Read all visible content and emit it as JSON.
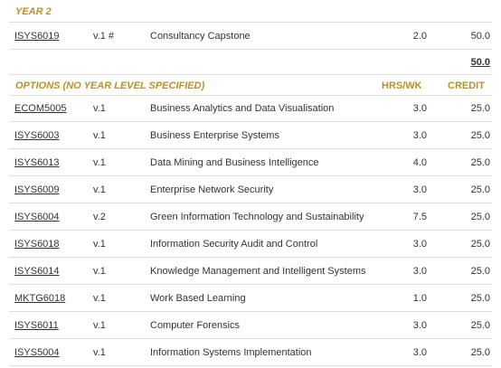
{
  "year2": {
    "title": "YEAR 2",
    "rows": [
      {
        "code": "ISYS6019",
        "version": "v.1 #",
        "title": "Consultancy Capstone",
        "hrs": "2.0",
        "credit": "50.0"
      }
    ],
    "total": "50.0"
  },
  "options": {
    "title": "OPTIONS (NO YEAR LEVEL SPECIFIED)",
    "hrs_header": "HRS/WK",
    "credit_header": "CREDIT",
    "rows": [
      {
        "code": "ECOM5005",
        "version": "v.1",
        "title": "Business Analytics and Data Visualisation",
        "hrs": "3.0",
        "credit": "25.0"
      },
      {
        "code": "ISYS6003",
        "version": "v.1",
        "title": "Business Enterprise Systems",
        "hrs": "3.0",
        "credit": "25.0"
      },
      {
        "code": "ISYS6013",
        "version": "v.1",
        "title": "Data Mining and Business Intelligence",
        "hrs": "4.0",
        "credit": "25.0"
      },
      {
        "code": "ISYS6009",
        "version": "v.1",
        "title": "Enterprise Network Security",
        "hrs": "3.0",
        "credit": "25.0"
      },
      {
        "code": "ISYS6004",
        "version": "v.2",
        "title": "Green Information Technology and Sustainability",
        "hrs": "7.5",
        "credit": "25.0"
      },
      {
        "code": "ISYS6018",
        "version": "v.1",
        "title": "Information Security Audit and Control",
        "hrs": "3.0",
        "credit": "25.0"
      },
      {
        "code": "ISYS6014",
        "version": "v.1",
        "title": "Knowledge Management and Intelligent Systems",
        "hrs": "3.0",
        "credit": "25.0"
      },
      {
        "code": "MKTG6018",
        "version": "v.1",
        "title": "Work Based Learning",
        "hrs": "1.0",
        "credit": "25.0"
      },
      {
        "code": "ISYS6011",
        "version": "v.1",
        "title": "Computer Forensics",
        "hrs": "3.0",
        "credit": "25.0"
      },
      {
        "code": "ISYS5004",
        "version": "v.1",
        "title": "Information Systems Implementation",
        "hrs": "3.0",
        "credit": "25.0"
      }
    ]
  }
}
